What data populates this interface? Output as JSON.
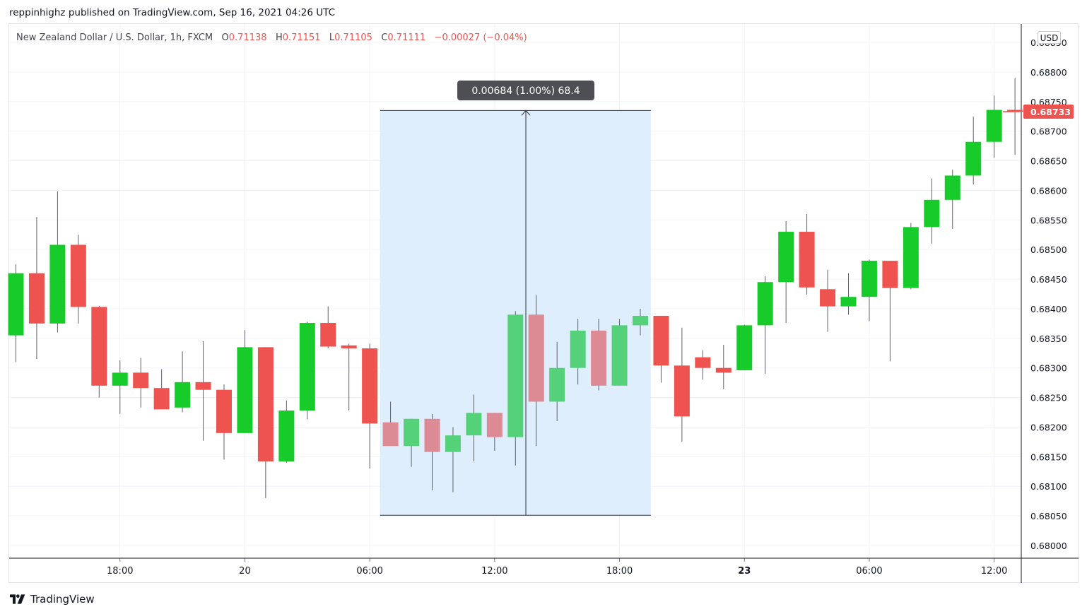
{
  "header": {
    "published_by": "reppinhighz published on TradingView.com, Sep 16, 2021 04:26 UTC"
  },
  "symbol_info": {
    "name": "New Zealand Dollar / U.S. Dollar, 1h, FXCM",
    "o_label": "O",
    "o_value": "0.71138",
    "h_label": "H",
    "h_value": "0.71151",
    "l_label": "L",
    "l_value": "0.71105",
    "c_label": "C",
    "c_value": "0.71111",
    "change": "−0.00027 (−0.04%)"
  },
  "currency_button": "USD",
  "footer": {
    "brand": "TradingView"
  },
  "colors": {
    "up": "#17cc2a",
    "down": "#ef5350",
    "up_faded": "#55d17a",
    "down_faded": "#dc8a93",
    "measure_fill": "#dfeefd",
    "grid": "#f0f3fa",
    "price_tag": "#ef5350"
  },
  "chart_data": {
    "type": "candlestick",
    "price_axis_label": "USD",
    "ylim": [
      0.6797,
      0.6893
    ],
    "y_ticks": [
      "0.68000",
      "0.68050",
      "0.68100",
      "0.68150",
      "0.68200",
      "0.68250",
      "0.68300",
      "0.68350",
      "0.68400",
      "0.68450",
      "0.68500",
      "0.68550",
      "0.68600",
      "0.68650",
      "0.68700",
      "0.68750",
      "0.68800",
      "0.68850"
    ],
    "x_ticks": [
      {
        "label": "18:00",
        "index": 5,
        "bold": false
      },
      {
        "label": "20",
        "index": 11,
        "bold": false
      },
      {
        "label": "06:00",
        "index": 17,
        "bold": false
      },
      {
        "label": "12:00",
        "index": 23,
        "bold": false
      },
      {
        "label": "18:00",
        "index": 29,
        "bold": false
      },
      {
        "label": "23",
        "index": 35,
        "bold": true
      },
      {
        "label": "06:00",
        "index": 41,
        "bold": false
      },
      {
        "label": "12:00",
        "index": 47,
        "bold": false
      }
    ],
    "last_price": "0.68733",
    "candles": [
      {
        "o": 0.68355,
        "h": 0.68475,
        "l": 0.6831,
        "c": 0.6846
      },
      {
        "o": 0.6846,
        "h": 0.68555,
        "l": 0.68315,
        "c": 0.68375
      },
      {
        "o": 0.68375,
        "h": 0.68598,
        "l": 0.6836,
        "c": 0.68508
      },
      {
        "o": 0.68508,
        "h": 0.68525,
        "l": 0.68375,
        "c": 0.68403
      },
      {
        "o": 0.68403,
        "h": 0.68405,
        "l": 0.6825,
        "c": 0.6827
      },
      {
        "o": 0.6827,
        "h": 0.68313,
        "l": 0.68222,
        "c": 0.68292
      },
      {
        "o": 0.68292,
        "h": 0.68317,
        "l": 0.68233,
        "c": 0.68266
      },
      {
        "o": 0.68266,
        "h": 0.68298,
        "l": 0.68233,
        "c": 0.6823
      },
      {
        "o": 0.68233,
        "h": 0.68328,
        "l": 0.68225,
        "c": 0.68276
      },
      {
        "o": 0.68276,
        "h": 0.68345,
        "l": 0.68177,
        "c": 0.68263
      },
      {
        "o": 0.68263,
        "h": 0.68272,
        "l": 0.68145,
        "c": 0.6819
      },
      {
        "o": 0.6819,
        "h": 0.68364,
        "l": 0.6819,
        "c": 0.68335
      },
      {
        "o": 0.68335,
        "h": 0.68335,
        "l": 0.6808,
        "c": 0.68142
      },
      {
        "o": 0.68142,
        "h": 0.68245,
        "l": 0.6814,
        "c": 0.68228
      },
      {
        "o": 0.68228,
        "h": 0.68378,
        "l": 0.68213,
        "c": 0.68376
      },
      {
        "o": 0.68376,
        "h": 0.68404,
        "l": 0.68333,
        "c": 0.68336
      },
      {
        "o": 0.68338,
        "h": 0.68341,
        "l": 0.68228,
        "c": 0.68333
      },
      {
        "o": 0.68333,
        "h": 0.68341,
        "l": 0.6813,
        "c": 0.68206
      },
      {
        "o": 0.68208,
        "h": 0.68243,
        "l": 0.68169,
        "c": 0.68168
      },
      {
        "o": 0.68168,
        "h": 0.68214,
        "l": 0.68133,
        "c": 0.68214
      },
      {
        "o": 0.68214,
        "h": 0.68222,
        "l": 0.68093,
        "c": 0.68158
      },
      {
        "o": 0.68158,
        "h": 0.682,
        "l": 0.6809,
        "c": 0.68186
      },
      {
        "o": 0.68186,
        "h": 0.68255,
        "l": 0.68142,
        "c": 0.68224
      },
      {
        "o": 0.68224,
        "h": 0.68224,
        "l": 0.6816,
        "c": 0.68183
      },
      {
        "o": 0.68183,
        "h": 0.68396,
        "l": 0.68135,
        "c": 0.6839
      },
      {
        "o": 0.6839,
        "h": 0.68423,
        "l": 0.68168,
        "c": 0.68243
      },
      {
        "o": 0.68243,
        "h": 0.68344,
        "l": 0.6821,
        "c": 0.683
      },
      {
        "o": 0.683,
        "h": 0.68383,
        "l": 0.68272,
        "c": 0.68363
      },
      {
        "o": 0.68363,
        "h": 0.68383,
        "l": 0.68262,
        "c": 0.6827
      },
      {
        "o": 0.6827,
        "h": 0.68382,
        "l": 0.6827,
        "c": 0.68372
      },
      {
        "o": 0.68372,
        "h": 0.684,
        "l": 0.68355,
        "c": 0.68388
      },
      {
        "o": 0.68388,
        "h": 0.68388,
        "l": 0.68275,
        "c": 0.68304
      },
      {
        "o": 0.68304,
        "h": 0.68368,
        "l": 0.68175,
        "c": 0.68218
      },
      {
        "o": 0.68318,
        "h": 0.6833,
        "l": 0.6828,
        "c": 0.683
      },
      {
        "o": 0.683,
        "h": 0.68339,
        "l": 0.68264,
        "c": 0.68292
      },
      {
        "o": 0.68296,
        "h": 0.68373,
        "l": 0.68296,
        "c": 0.68372
      },
      {
        "o": 0.68372,
        "h": 0.68455,
        "l": 0.6829,
        "c": 0.68445
      },
      {
        "o": 0.68445,
        "h": 0.68548,
        "l": 0.68376,
        "c": 0.6853
      },
      {
        "o": 0.6853,
        "h": 0.6856,
        "l": 0.68424,
        "c": 0.68436
      },
      {
        "o": 0.68433,
        "h": 0.68466,
        "l": 0.68361,
        "c": 0.68404
      },
      {
        "o": 0.68404,
        "h": 0.6846,
        "l": 0.6839,
        "c": 0.6842
      },
      {
        "o": 0.6842,
        "h": 0.68483,
        "l": 0.68379,
        "c": 0.68481
      },
      {
        "o": 0.68481,
        "h": 0.68481,
        "l": 0.68311,
        "c": 0.68435
      },
      {
        "o": 0.68435,
        "h": 0.68545,
        "l": 0.68433,
        "c": 0.68538
      },
      {
        "o": 0.68538,
        "h": 0.6862,
        "l": 0.6851,
        "c": 0.68584
      },
      {
        "o": 0.68584,
        "h": 0.68635,
        "l": 0.68535,
        "c": 0.68625
      },
      {
        "o": 0.68625,
        "h": 0.68725,
        "l": 0.6861,
        "c": 0.68682
      },
      {
        "o": 0.68682,
        "h": 0.6876,
        "l": 0.68655,
        "c": 0.68736
      },
      {
        "o": 0.68736,
        "h": 0.6879,
        "l": 0.6866,
        "c": 0.68733
      }
    ],
    "measure": {
      "label": "0.00684 (1.00%) 68.4",
      "start_index": 17.5,
      "end_index": 30.5,
      "low": 0.68051,
      "high": 0.68735,
      "arrow_index": 24.5
    }
  }
}
